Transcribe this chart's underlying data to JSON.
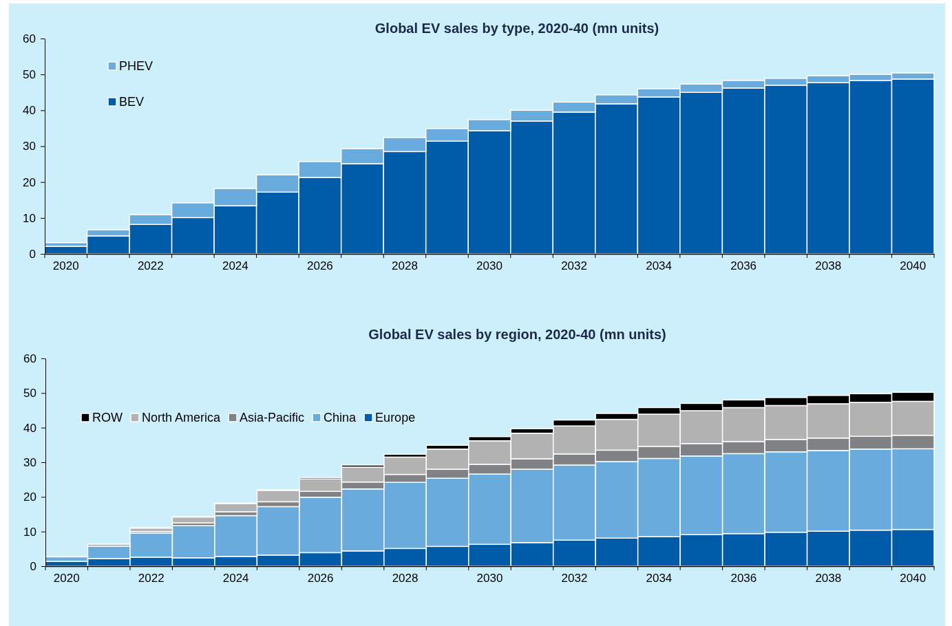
{
  "chart_data": [
    {
      "type": "bar",
      "title": "Global EV sales by type, 2020-40 (mn units)",
      "categories": [
        "2020",
        null,
        "2022",
        null,
        "2024",
        null,
        "2026",
        null,
        "2028",
        null,
        "2030",
        null,
        "2032",
        null,
        "2034",
        null,
        "2036",
        null,
        "2038",
        null,
        "2040"
      ],
      "stacked": true,
      "ylim": [
        0,
        60
      ],
      "yticks": [
        0,
        10,
        20,
        30,
        40,
        50,
        60
      ],
      "legend": "top left",
      "series": [
        {
          "name": "BEV",
          "color": "#005ca9",
          "values": [
            2.1,
            5.0,
            8.2,
            10.1,
            13.4,
            17.2,
            21.3,
            25.1,
            28.5,
            31.4,
            34.3,
            37.0,
            39.5,
            41.8,
            43.7,
            45.0,
            46.2,
            47.0,
            47.7,
            48.3,
            48.7
          ]
        },
        {
          "name": "PHEV",
          "color": "#6aabdd",
          "values": [
            1.0,
            1.7,
            2.7,
            4.1,
            4.8,
            4.8,
            4.4,
            4.2,
            3.9,
            3.5,
            3.1,
            3.0,
            2.8,
            2.5,
            2.3,
            2.3,
            2.1,
            1.9,
            1.9,
            1.7,
            1.7
          ]
        }
      ]
    },
    {
      "type": "bar",
      "title": "Global EV sales by region, 2020-40 (mn units)",
      "categories": [
        "2020",
        null,
        "2022",
        null,
        "2024",
        null,
        "2026",
        null,
        "2028",
        null,
        "2030",
        null,
        "2032",
        null,
        "2034",
        null,
        "2036",
        null,
        "2038",
        null,
        "2040"
      ],
      "stacked": true,
      "ylim": [
        0,
        60
      ],
      "yticks": [
        0,
        10,
        20,
        30,
        40,
        50,
        60
      ],
      "legend": "left",
      "series": [
        {
          "name": "Europe",
          "color": "#005ca9",
          "values": [
            1.4,
            2.2,
            2.6,
            2.4,
            2.8,
            3.2,
            3.9,
            4.4,
            5.1,
            5.7,
            6.3,
            6.8,
            7.5,
            8.1,
            8.5,
            9.1,
            9.4,
            9.8,
            10.1,
            10.4,
            10.6
          ]
        },
        {
          "name": "China",
          "color": "#6aabdd",
          "values": [
            1.3,
            3.6,
            6.9,
            9.3,
            11.8,
            14.0,
            16.0,
            17.9,
            19.1,
            19.7,
            20.3,
            21.2,
            21.7,
            22.1,
            22.6,
            22.7,
            23.1,
            23.2,
            23.3,
            23.4,
            23.3
          ]
        },
        {
          "name": "Asia-Pacific",
          "color": "#808285",
          "values": [
            null,
            0.5,
            0.5,
            0.8,
            1.1,
            1.4,
            1.7,
            2.0,
            2.3,
            2.6,
            2.8,
            3.0,
            3.2,
            3.3,
            3.5,
            3.6,
            3.5,
            3.6,
            3.6,
            3.7,
            3.9
          ]
        },
        {
          "name": "North America",
          "color": "#b2b2b2",
          "values": [
            null,
            null,
            1.0,
            1.7,
            2.4,
            3.3,
            3.6,
            4.3,
            5.0,
            5.8,
            6.8,
            7.4,
            8.1,
            8.9,
            9.3,
            9.5,
            9.8,
            9.8,
            9.9,
            9.8,
            9.8
          ]
        },
        {
          "name": "ROW",
          "color": "#000000",
          "values": [
            0.1,
            0.1,
            0.1,
            0.1,
            0.1,
            0.2,
            0.4,
            0.6,
            0.8,
            1.1,
            1.2,
            1.3,
            1.7,
            1.7,
            1.9,
            2.1,
            2.2,
            2.3,
            2.4,
            2.5,
            2.6
          ]
        }
      ]
    }
  ]
}
